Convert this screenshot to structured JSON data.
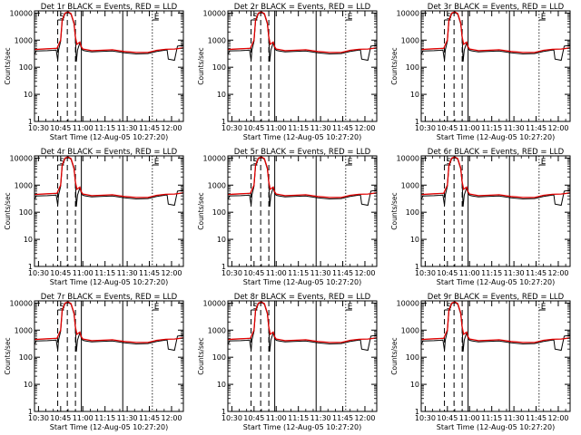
{
  "colors": {
    "events": "#000000",
    "lld": "#e00000",
    "axes": "#000000",
    "background": "#ffffff"
  },
  "shared": {
    "type": "line",
    "xlabel": "Start Time (12-Aug-05 10:27:20)",
    "ylabel": "Counts/sec",
    "x_ticks": [
      "10:30",
      "10:45",
      "11:00",
      "11:15",
      "11:30",
      "11:45",
      "12:00"
    ],
    "x_tick_minutes": [
      30,
      45,
      60,
      75,
      90,
      105,
      120
    ],
    "xlim_minutes": [
      27.3,
      128
    ],
    "y_ticks": [
      "1",
      "10",
      "100",
      "1000",
      "10000"
    ],
    "ylim": [
      1,
      12000
    ],
    "yscale": "log",
    "grid": false,
    "markers": [
      {
        "minute": 43,
        "style": "dashed",
        "bracket_label": "S"
      },
      {
        "minute": 49.5,
        "style": "dashed",
        "bracket_label": ""
      },
      {
        "minute": 55,
        "style": "dashed",
        "bracket_label": ""
      },
      {
        "minute": 59,
        "style": "solid",
        "bracket_label": ""
      },
      {
        "minute": 87,
        "style": "solid",
        "bracket_label": ""
      },
      {
        "minute": 107,
        "style": "dotted",
        "bracket_label": "E"
      }
    ],
    "events_curve": [
      [
        27.3,
        300
      ],
      [
        28.5,
        400
      ],
      [
        36,
        410
      ],
      [
        40,
        420
      ],
      [
        42,
        430
      ],
      [
        43,
        180
      ],
      [
        43.6,
        430
      ],
      [
        45,
        900
      ],
      [
        46,
        5000
      ],
      [
        48,
        9500
      ],
      [
        50,
        10500
      ],
      [
        52,
        9000
      ],
      [
        54,
        4000
      ],
      [
        55,
        1200
      ],
      [
        55.6,
        160
      ],
      [
        56.4,
        430
      ],
      [
        58,
        800
      ],
      [
        59,
        500
      ],
      [
        60,
        420
      ],
      [
        62,
        400
      ],
      [
        66,
        370
      ],
      [
        72,
        380
      ],
      [
        80,
        400
      ],
      [
        88,
        340
      ],
      [
        96,
        310
      ],
      [
        104,
        320
      ],
      [
        110,
        380
      ],
      [
        116,
        430
      ],
      [
        117,
        430
      ],
      [
        117.8,
        200
      ],
      [
        122,
        180
      ],
      [
        124,
        600
      ],
      [
        128,
        650
      ]
    ],
    "lld_curve": [
      [
        27.3,
        450
      ],
      [
        36,
        480
      ],
      [
        40,
        490
      ],
      [
        42.5,
        500
      ],
      [
        45,
        1000
      ],
      [
        46,
        5500
      ],
      [
        48,
        10000
      ],
      [
        50,
        10900
      ],
      [
        52,
        9500
      ],
      [
        54,
        4300
      ],
      [
        55,
        1300
      ],
      [
        56,
        700
      ],
      [
        58,
        850
      ],
      [
        59,
        560
      ],
      [
        60,
        470
      ],
      [
        62,
        450
      ],
      [
        66,
        410
      ],
      [
        72,
        420
      ],
      [
        80,
        440
      ],
      [
        88,
        380
      ],
      [
        96,
        350
      ],
      [
        104,
        350
      ],
      [
        110,
        420
      ],
      [
        116,
        460
      ],
      [
        122,
        470
      ],
      [
        128,
        520
      ]
    ]
  },
  "chart_data": [
    {
      "title": "Det 1r BLACK = Events, RED = LLD"
    },
    {
      "title": "Det 2r BLACK = Events, RED = LLD"
    },
    {
      "title": "Det 3r BLACK = Events, RED = LLD"
    },
    {
      "title": "Det 4r BLACK = Events, RED = LLD"
    },
    {
      "title": "Det 5r BLACK = Events, RED = LLD"
    },
    {
      "title": "Det 6r BLACK = Events, RED = LLD"
    },
    {
      "title": "Det 7r BLACK = Events, RED = LLD"
    },
    {
      "title": "Det 8r BLACK = Events, RED = LLD"
    },
    {
      "title": "Det 9r BLACK = Events, RED = LLD"
    }
  ]
}
